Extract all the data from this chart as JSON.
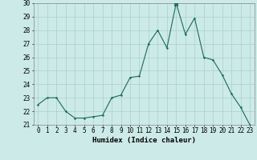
{
  "xlabel": "Humidex (Indice chaleur)",
  "x_values": [
    0,
    1,
    2,
    3,
    4,
    5,
    6,
    7,
    8,
    9,
    10,
    11,
    12,
    13,
    14,
    15,
    16,
    17,
    18,
    19,
    20,
    21,
    22,
    23
  ],
  "y_values": [
    22.5,
    23.0,
    23.0,
    22.0,
    21.5,
    21.5,
    21.6,
    21.7,
    23.0,
    23.2,
    24.5,
    24.6,
    27.0,
    28.0,
    26.7,
    30.0,
    27.7,
    28.9,
    26.0,
    25.8,
    24.7,
    23.3,
    22.3,
    21.0
  ],
  "ylim": [
    21,
    30
  ],
  "yticks": [
    21,
    22,
    23,
    24,
    25,
    26,
    27,
    28,
    29,
    30
  ],
  "line_color": "#1a6b5a",
  "marker_size": 2.5,
  "bg_color": "#cceae7",
  "grid_color": "#aacfcc",
  "tick_fontsize": 5.5,
  "xlabel_fontsize": 6.5,
  "star_index": 15
}
